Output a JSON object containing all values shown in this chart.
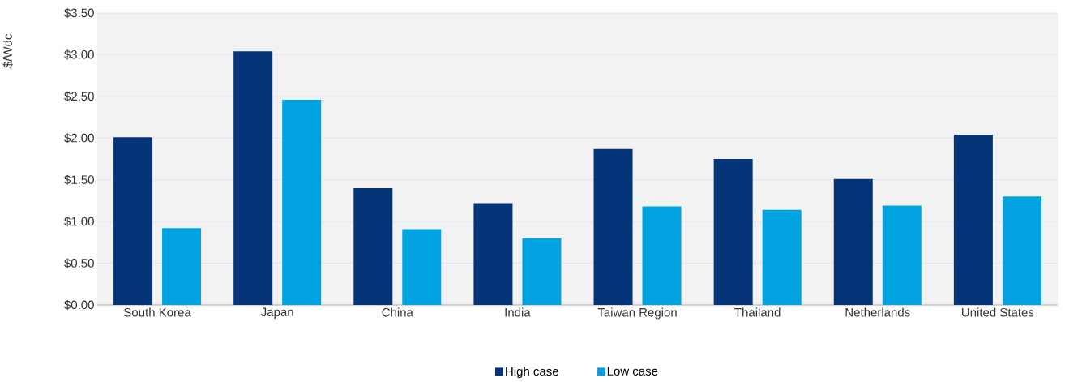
{
  "chart_data": {
    "type": "bar",
    "ylabel": "$/Wdc",
    "categories": [
      "South Korea",
      "Japan",
      "China",
      "India",
      "Taiwan Region",
      "Thailand",
      "Netherlands",
      "United States"
    ],
    "series": [
      {
        "name": "High case",
        "color": "#063478",
        "values": [
          2.01,
          3.04,
          1.4,
          1.22,
          1.87,
          1.75,
          1.51,
          2.04
        ]
      },
      {
        "name": "Low case",
        "color": "#00a3e0",
        "values": [
          0.92,
          2.46,
          0.91,
          0.8,
          1.18,
          1.14,
          1.19,
          1.3
        ]
      }
    ],
    "ylim": [
      0,
      3.5
    ],
    "yticks": [
      {
        "value": 0,
        "label": "$0.00"
      },
      {
        "value": 0.5,
        "label": "$0.50"
      },
      {
        "value": 1,
        "label": "$1.00"
      },
      {
        "value": 1.5,
        "label": "$1.50"
      },
      {
        "value": 2,
        "label": "$2.00"
      },
      {
        "value": 2.5,
        "label": "$2.50"
      },
      {
        "value": 3,
        "label": "$3.00"
      },
      {
        "value": 3.5,
        "label": "$3.50"
      }
    ],
    "grid": "y",
    "legend": "bottom"
  }
}
